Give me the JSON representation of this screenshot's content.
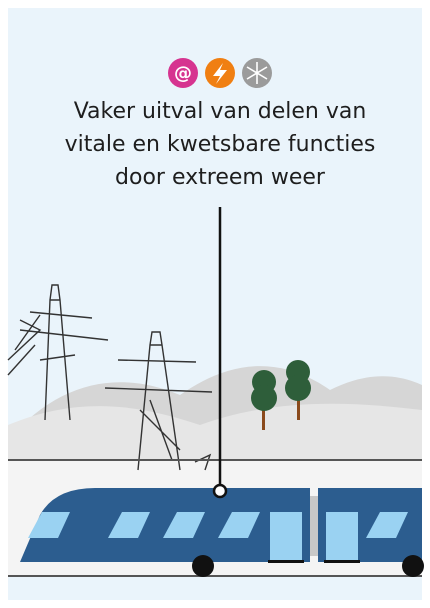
{
  "title_lines": [
    "Vaker uitval van delen van",
    "vitale en kwetsbare functies",
    "door extreem weer"
  ]
}
